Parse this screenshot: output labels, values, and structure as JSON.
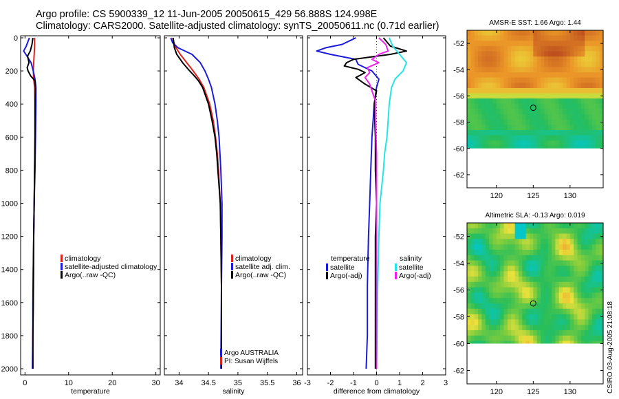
{
  "header": {
    "title_line1": "Argo profile: CS 5900339_12 11-Jun-2005 20050615_429 56.888S 124.998E",
    "title_line2": "Climatology: CARS2000. Satellite-adjusted climatology: synTS_20050611.nc (0.71d earlier)"
  },
  "footer": {
    "credit": "CSIRO 03-Aug-2005 21:08:18"
  },
  "colors": {
    "climatology": "#e0201c",
    "satellite": "#1a1adc",
    "argo": "#000000",
    "salinity_satellite": "#22e6e6",
    "salinity_argo": "#ee22ee"
  },
  "legends": {
    "temperature": [
      "climatology",
      "satellite-adjusted climatology",
      "Argo(..raw -QC)"
    ],
    "salinity": [
      "climatology",
      "satellite adj. clim.",
      "Argo(..raw -QC)"
    ],
    "salinity_credit": [
      "Argo AUSTRALIA",
      "PI: Susan Wijffels"
    ],
    "difference_left": [
      "temperature",
      "satellite",
      "Argo(-adj)"
    ],
    "difference_right": [
      "salinity",
      "satellite",
      "Argo(-adj)"
    ]
  },
  "chart_data": [
    {
      "id": "temperature",
      "type": "line",
      "xlabel": "temperature",
      "ylabel": "",
      "xlim": [
        -1,
        31
      ],
      "ylim": [
        2050,
        0
      ],
      "xticks": [
        0,
        10,
        20,
        30
      ],
      "yticks": [
        0,
        200,
        400,
        600,
        800,
        1000,
        1200,
        1400,
        1600,
        1800,
        2000
      ],
      "series": [
        {
          "name": "climatology",
          "color": "#e0201c",
          "depth": [
            0,
            50,
            100,
            150,
            200,
            250,
            300,
            400,
            600,
            800,
            1000,
            1200,
            1400,
            1600,
            1800,
            2000
          ],
          "values": [
            2.2,
            2.2,
            2.1,
            2.0,
            1.9,
            2.0,
            2.2,
            2.3,
            2.3,
            2.2,
            2.1,
            2.0,
            2.0,
            1.9,
            1.8,
            1.8
          ]
        },
        {
          "name": "satellite-adjusted climatology",
          "color": "#1a1adc",
          "depth": [
            0,
            50,
            80,
            100,
            150,
            200,
            250,
            300,
            400,
            600,
            800,
            1000,
            1200,
            1400,
            1600,
            1800,
            2000
          ],
          "values": [
            1.0,
            0.3,
            -0.3,
            0.2,
            1.4,
            1.9,
            2.3,
            2.5,
            2.5,
            2.4,
            2.3,
            2.1,
            2.0,
            1.9,
            1.8,
            1.8,
            1.7
          ]
        },
        {
          "name": "Argo(..raw -QC)",
          "color": "#000000",
          "depth": [
            0,
            40,
            80,
            110,
            150,
            180,
            200,
            230,
            260,
            300,
            400,
            600,
            800,
            1000,
            1200,
            1400,
            1600,
            1800,
            2000
          ],
          "values": [
            1.8,
            1.6,
            1.2,
            0.6,
            0.9,
            0.5,
            0.7,
            1.3,
            2.3,
            2.4,
            2.3,
            2.3,
            2.2,
            2.1,
            2.0,
            1.9,
            1.9,
            1.8,
            1.8
          ]
        }
      ]
    },
    {
      "id": "salinity",
      "type": "line",
      "xlabel": "salinity",
      "ylabel": "",
      "xlim": [
        33.75,
        36.1
      ],
      "ylim": [
        2050,
        0
      ],
      "xticks": [
        34,
        34.5,
        35,
        35.5,
        36
      ],
      "yticks": [
        0,
        200,
        400,
        600,
        800,
        1000,
        1200,
        1400,
        1600,
        1800,
        2000
      ],
      "series": [
        {
          "name": "climatology",
          "color": "#e0201c",
          "depth": [
            0,
            50,
            100,
            150,
            200,
            250,
            300,
            400,
            500,
            600,
            700,
            800,
            1000,
            1200,
            1500,
            2000
          ],
          "values": [
            33.89,
            33.93,
            34.02,
            34.13,
            34.24,
            34.34,
            34.42,
            34.52,
            34.58,
            34.62,
            34.65,
            34.67,
            34.7,
            34.71,
            34.72,
            34.72
          ]
        },
        {
          "name": "satellite adj. clim.",
          "color": "#1a1adc",
          "depth": [
            0,
            30,
            60,
            100,
            150,
            200,
            250,
            300,
            400,
            500,
            600,
            800,
            1000,
            1200,
            1500,
            2000
          ],
          "values": [
            33.86,
            33.89,
            33.98,
            34.22,
            34.36,
            34.44,
            34.5,
            34.55,
            34.61,
            34.65,
            34.68,
            34.71,
            34.73,
            34.73,
            34.72,
            34.71
          ]
        },
        {
          "name": "Argo(..raw -QC)",
          "color": "#000000",
          "depth": [
            0,
            60,
            100,
            150,
            200,
            230,
            260,
            300,
            400,
            500,
            600,
            700,
            800,
            1000,
            1200,
            1500,
            2000
          ],
          "values": [
            33.9,
            33.92,
            33.96,
            34.06,
            34.18,
            34.26,
            34.33,
            34.4,
            34.5,
            34.56,
            34.61,
            34.64,
            34.66,
            34.7,
            34.71,
            34.72,
            34.72
          ]
        }
      ]
    },
    {
      "id": "difference",
      "type": "line",
      "xlabel": "difference from climatology",
      "ylabel": "",
      "xlim": [
        -3,
        3
      ],
      "ylim": [
        2050,
        0
      ],
      "xticks": [
        -3,
        -2,
        -1,
        0,
        1,
        2,
        3
      ],
      "yticks": [
        0,
        200,
        400,
        600,
        800,
        1000,
        1200,
        1400,
        1600,
        1800,
        2000
      ],
      "series": [
        {
          "name": "temperature satellite",
          "color": "#1a1adc",
          "depth": [
            0,
            40,
            60,
            80,
            100,
            130,
            160,
            200,
            250,
            300,
            400,
            500,
            600,
            800,
            1000,
            1200,
            1500,
            1800,
            2000
          ],
          "values": [
            -0.9,
            -1.5,
            -2.2,
            -2.6,
            -2.0,
            -0.9,
            -0.8,
            -0.2,
            0.1,
            0.0,
            -0.1,
            -0.15,
            -0.2,
            -0.25,
            -0.3,
            -0.35,
            -0.4,
            -0.4,
            -0.45
          ]
        },
        {
          "name": "temperature Argo(-adj)",
          "color": "#000000",
          "depth": [
            0,
            50,
            80,
            100,
            130,
            150,
            170,
            190,
            210,
            240,
            280,
            320,
            400,
            600,
            800,
            1000,
            1200,
            1500,
            2000
          ],
          "values": [
            0.3,
            0.6,
            1.3,
            0.6,
            -1.0,
            -1.3,
            -1.4,
            -0.8,
            -0.5,
            -0.9,
            -0.5,
            0.0,
            -0.1,
            -0.05,
            -0.05,
            0.0,
            -0.05,
            -0.05,
            -0.05
          ]
        },
        {
          "name": "salinity satellite",
          "color": "#22e6e6",
          "depth": [
            0,
            50,
            100,
            150,
            200,
            250,
            300,
            400,
            500,
            600,
            700,
            800,
            1000,
            1200,
            1500,
            2000
          ],
          "values": [
            0.55,
            0.7,
            1.0,
            1.3,
            1.15,
            0.8,
            0.65,
            0.55,
            0.5,
            0.45,
            0.35,
            0.3,
            0.15,
            0.1,
            0.05,
            0.0
          ]
        },
        {
          "name": "salinity Argo(-adj)",
          "color": "#ee22ee",
          "depth": [
            0,
            40,
            80,
            100,
            130,
            150,
            180,
            210,
            240,
            280,
            320,
            380,
            500,
            700,
            1000,
            1500,
            2000
          ],
          "values": [
            0.1,
            0.4,
            0.5,
            0.1,
            -0.2,
            0.1,
            -0.4,
            -0.3,
            -0.5,
            -0.3,
            -0.2,
            -0.05,
            -0.05,
            0.0,
            0.0,
            0.0,
            0.0
          ]
        }
      ]
    },
    {
      "id": "sst_map",
      "type": "heatmap",
      "title": "AMSR-E SST: 1.66 Argo: 1.44",
      "xlim": [
        116,
        134.5
      ],
      "ylim": [
        -63,
        -51
      ],
      "xticks": [
        120,
        125,
        130
      ],
      "yticks": [
        -52,
        -54,
        -56,
        -58,
        -60,
        -62
      ],
      "data_lat_min": -60,
      "marker": {
        "lon": 125,
        "lat": -56.9
      }
    },
    {
      "id": "sla_map",
      "type": "heatmap",
      "title": "Altimetric SLA: -0.13 Argo: 0.019",
      "xlim": [
        116,
        134.5
      ],
      "ylim": [
        -63,
        -51
      ],
      "xticks": [
        120,
        125,
        130
      ],
      "yticks": [
        -52,
        -54,
        -56,
        -58,
        -60,
        -62
      ],
      "data_lat_min": -60,
      "marker": {
        "lon": 125,
        "lat": -57.0
      }
    }
  ]
}
